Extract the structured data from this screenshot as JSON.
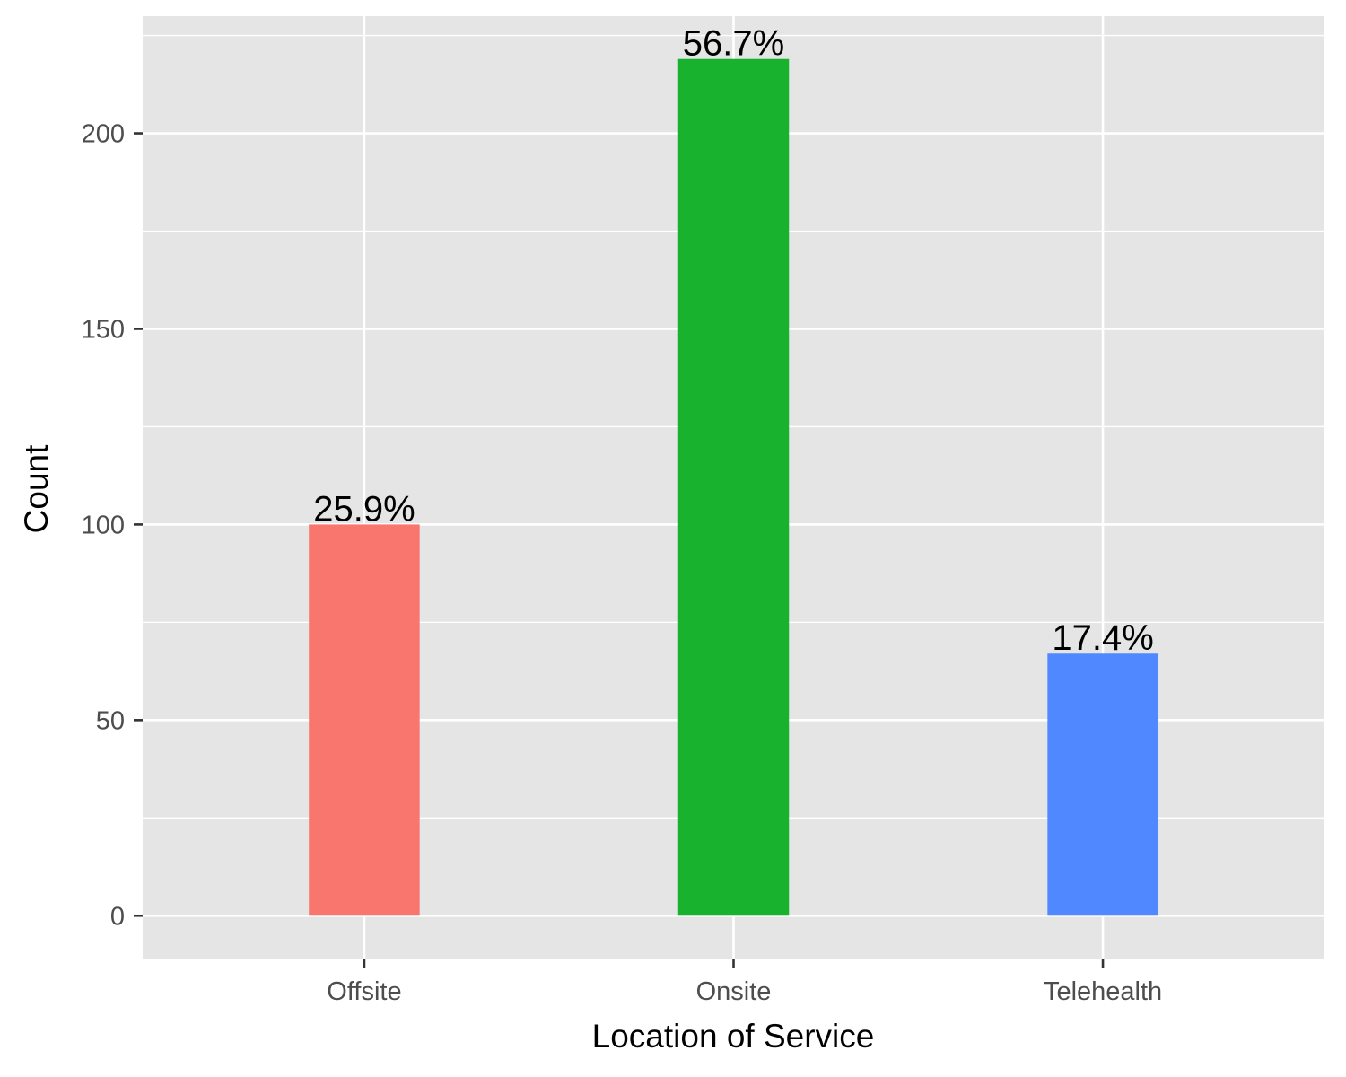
{
  "chart_data": {
    "type": "bar",
    "categories": [
      "Offsite",
      "Onsite",
      "Telehealth"
    ],
    "values": [
      100,
      219,
      67
    ],
    "data_labels": [
      "25.9%",
      "56.7%",
      "17.4%"
    ],
    "colors": [
      "#F8766D",
      "#19B22F",
      "#5088FF"
    ],
    "xlabel": "Location of Service",
    "ylabel": "Count",
    "ylim": [
      -10.95,
      229.95
    ],
    "yticks": [
      0,
      50,
      100,
      150,
      200
    ],
    "ytick_labels": [
      "0",
      "50",
      "100",
      "150",
      "200"
    ],
    "grid": true,
    "legend": "none",
    "panel_background": "#E5E5E5",
    "grid_color": "#FFFFFF"
  }
}
